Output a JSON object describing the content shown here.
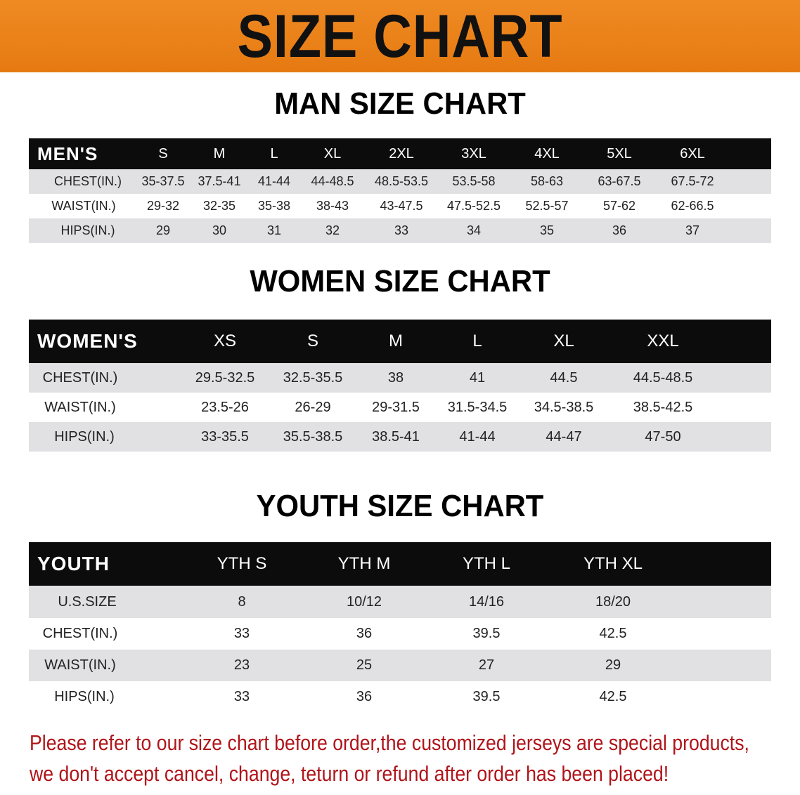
{
  "banner": {
    "title": "SIZE CHART",
    "color": "#e98318"
  },
  "men": {
    "title": "MAN SIZE CHART",
    "header": [
      "MEN'S",
      "S",
      "M",
      "L",
      "XL",
      "2XL",
      "3XL",
      "4XL",
      "5XL",
      "6XL"
    ],
    "rows": [
      [
        "CHEST(IN.)",
        "35-37.5",
        "37.5-41",
        "41-44",
        "44-48.5",
        "48.5-53.5",
        "53.5-58",
        "58-63",
        "63-67.5",
        "67.5-72"
      ],
      [
        "WAIST(IN.)",
        "29-32",
        "32-35",
        "35-38",
        "38-43",
        "43-47.5",
        "47.5-52.5",
        "52.5-57",
        "57-62",
        "62-66.5"
      ],
      [
        "HIPS(IN.)",
        "29",
        "30",
        "31",
        "32",
        "33",
        "34",
        "35",
        "36",
        "37"
      ]
    ]
  },
  "women": {
    "title": "WOMEN SIZE CHART",
    "header": [
      "WOMEN'S",
      "XS",
      "S",
      "M",
      "L",
      "XL",
      "XXL"
    ],
    "rows": [
      [
        "CHEST(IN.)",
        "29.5-32.5",
        "32.5-35.5",
        "38",
        "41",
        "44.5",
        "44.5-48.5"
      ],
      [
        "WAIST(IN.)",
        "23.5-26",
        "26-29",
        "29-31.5",
        "31.5-34.5",
        "34.5-38.5",
        "38.5-42.5"
      ],
      [
        "HIPS(IN.)",
        "33-35.5",
        "35.5-38.5",
        "38.5-41",
        "41-44",
        "44-47",
        "47-50"
      ]
    ]
  },
  "youth": {
    "title": "YOUTH SIZE CHART",
    "header": [
      "YOUTH",
      "YTH S",
      "YTH M",
      "YTH L",
      "YTH XL"
    ],
    "rows": [
      [
        "U.S.SIZE",
        "8",
        "10/12",
        "14/16",
        "18/20"
      ],
      [
        "CHEST(IN.)",
        "33",
        "36",
        "39.5",
        "42.5"
      ],
      [
        "WAIST(IN.)",
        "23",
        "25",
        "27",
        "29"
      ],
      [
        "HIPS(IN.)",
        "33",
        "36",
        "39.5",
        "42.5"
      ]
    ]
  },
  "notice": {
    "line1": "Please refer to our size chart before order,the customized jerseys are special products,",
    "line2": "we don't accept cancel, change, teturn or refund after order has been placed!",
    "color": "#b0141a"
  }
}
